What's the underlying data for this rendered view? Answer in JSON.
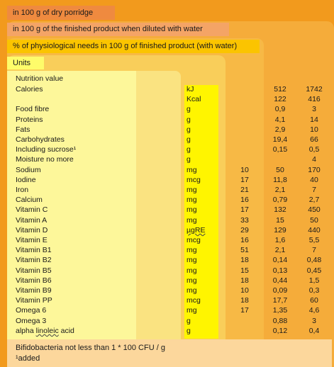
{
  "headers": {
    "h1": "in 100 g of dry porridge",
    "h2": "in 100 g of the finished product when diluted with water",
    "h3": "% of physiological needs in 100 g of finished product  (with water)",
    "h4": "Units"
  },
  "table": {
    "title": "Nutrition value",
    "rows": [
      {
        "name": "Calories",
        "unit": "kJ",
        "pct": "",
        "finished": "512",
        "dry": "1742"
      },
      {
        "name": "",
        "unit": "Kcal",
        "pct": "",
        "finished": "122",
        "dry": "416"
      },
      {
        "name": "Food fibre",
        "unit": "g",
        "pct": "",
        "finished": "0,9",
        "dry": "3"
      },
      {
        "name": "Proteins",
        "unit": "g",
        "pct": "",
        "finished": "4,1",
        "dry": "14"
      },
      {
        "name": "Fats",
        "unit": "g",
        "pct": "",
        "finished": "2,9",
        "dry": "10"
      },
      {
        "name": "Carbohydrates",
        "unit": "g",
        "pct": "",
        "finished": "19,4",
        "dry": "66"
      },
      {
        "name": "Including sucrose¹",
        "unit": "g",
        "pct": "",
        "finished": "0,15",
        "dry": "0,5"
      },
      {
        "name": "Moisture no more",
        "unit": "g",
        "pct": "",
        "finished": "",
        "dry": "4"
      },
      {
        "name": "Sodium",
        "unit": "mg",
        "pct": "10",
        "finished": "50",
        "dry": "170"
      },
      {
        "name": "Iodine",
        "unit": "mcg",
        "pct": "17",
        "finished": "11,8",
        "dry": "40"
      },
      {
        "name": "Iron",
        "unit": "mg",
        "pct": "21",
        "finished": "2,1",
        "dry": "7"
      },
      {
        "name": "Calcium",
        "unit": "mg",
        "pct": "16",
        "finished": "0,79",
        "dry": "2,7"
      },
      {
        "name": "Vitamin C",
        "unit": "mg",
        "pct": "17",
        "finished": "132",
        "dry": "450"
      },
      {
        "name": "Vitamin A",
        "unit": "mg",
        "pct": "33",
        "finished": "15",
        "dry": "50"
      },
      {
        "name": "Vitamin D",
        "unit": "µgRE",
        "pct": "29",
        "finished": "129",
        "dry": "440"
      },
      {
        "name": "Vitamin E",
        "unit": "mcg",
        "pct": "16",
        "finished": "1,6",
        "dry": "5,5"
      },
      {
        "name": "Vitamin B1",
        "unit": "mg",
        "pct": "51",
        "finished": "2,1",
        "dry": "7"
      },
      {
        "name": "Vitamin B2",
        "unit": "mg",
        "pct": "18",
        "finished": "0,14",
        "dry": "0,48"
      },
      {
        "name": "Vitamin B5",
        "unit": "mg",
        "pct": "15",
        "finished": "0,13",
        "dry": "0,45"
      },
      {
        "name": "Vitamin B6",
        "unit": "mg",
        "pct": "18",
        "finished": "0,44",
        "dry": "1,5"
      },
      {
        "name": "Vitamin B9",
        "unit": "mg",
        "pct": "10",
        "finished": "0,09",
        "dry": "0,3"
      },
      {
        "name": "Vitamin PP",
        "unit": "mcg",
        "pct": "18",
        "finished": "17,7",
        "dry": "60"
      },
      {
        "name": "Omega 6",
        "unit": "mg",
        "pct": "17",
        "finished": "1,35",
        "dry": "4,6"
      },
      {
        "name": "Omega 3",
        "unit": "g",
        "pct": "",
        "finished": "0,88",
        "dry": "3"
      },
      {
        "name": "alpha linoleic acid",
        "unit": "g",
        "pct": "",
        "finished": "0,12",
        "dry": "0,4"
      }
    ]
  },
  "footer": {
    "line1": "Bifidobacteria not less than 1 * 100 CFU / g",
    "line2": "¹added"
  }
}
